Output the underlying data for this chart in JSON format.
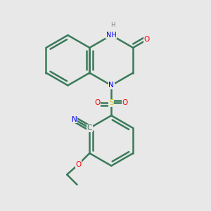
{
  "bg_color": "#e8e8e8",
  "bond_color": "#3a7a5a",
  "bond_width": 1.8,
  "atom_colors": {
    "N": "#0000ff",
    "O": "#ff0000",
    "S": "#cccc00",
    "C": "#3a7a5a",
    "H": "#808080"
  },
  "font_size": 7.5,
  "fig_size": [
    3.0,
    3.0
  ],
  "dpi": 100,
  "xlim": [
    -1.5,
    4.5
  ],
  "ylim": [
    -4.2,
    4.2
  ]
}
